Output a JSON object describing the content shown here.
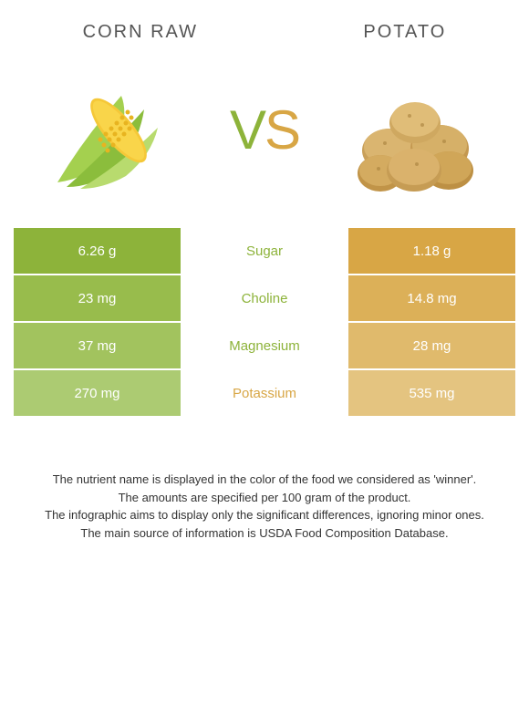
{
  "food_left": {
    "title": "CORN RAW",
    "color": "#8db33a"
  },
  "food_right": {
    "title": "POTATO",
    "color": "#d8a645"
  },
  "vs": {
    "v_color": "#8db33a",
    "s_color": "#d8a645"
  },
  "rows": [
    {
      "left": "6.26 g",
      "label": "Sugar",
      "right": "1.18 g",
      "winner": "left"
    },
    {
      "left": "23 mg",
      "label": "Choline",
      "right": "14.8 mg",
      "winner": "left"
    },
    {
      "left": "37 mg",
      "label": "Magnesium",
      "right": "28 mg",
      "winner": "left"
    },
    {
      "left": "270 mg",
      "label": "Potassium",
      "right": "535 mg",
      "winner": "right"
    }
  ],
  "footer": {
    "line1": "The nutrient name is displayed in the color of the food we considered as 'winner'.",
    "line2": "The amounts are specified per 100 gram of the product.",
    "line3": "The infographic aims to display only the significant differences, ignoring minor ones.",
    "line4": "The main source of information is USDA Food Composition Database."
  },
  "style": {
    "left_shades": [
      "#8db33a",
      "#98bc4c",
      "#a2c35e",
      "#accb72"
    ],
    "right_shades": [
      "#d8a645",
      "#dcb058",
      "#e0ba6c",
      "#e4c480"
    ],
    "label_fontsize": 15,
    "value_fontsize": 15
  }
}
